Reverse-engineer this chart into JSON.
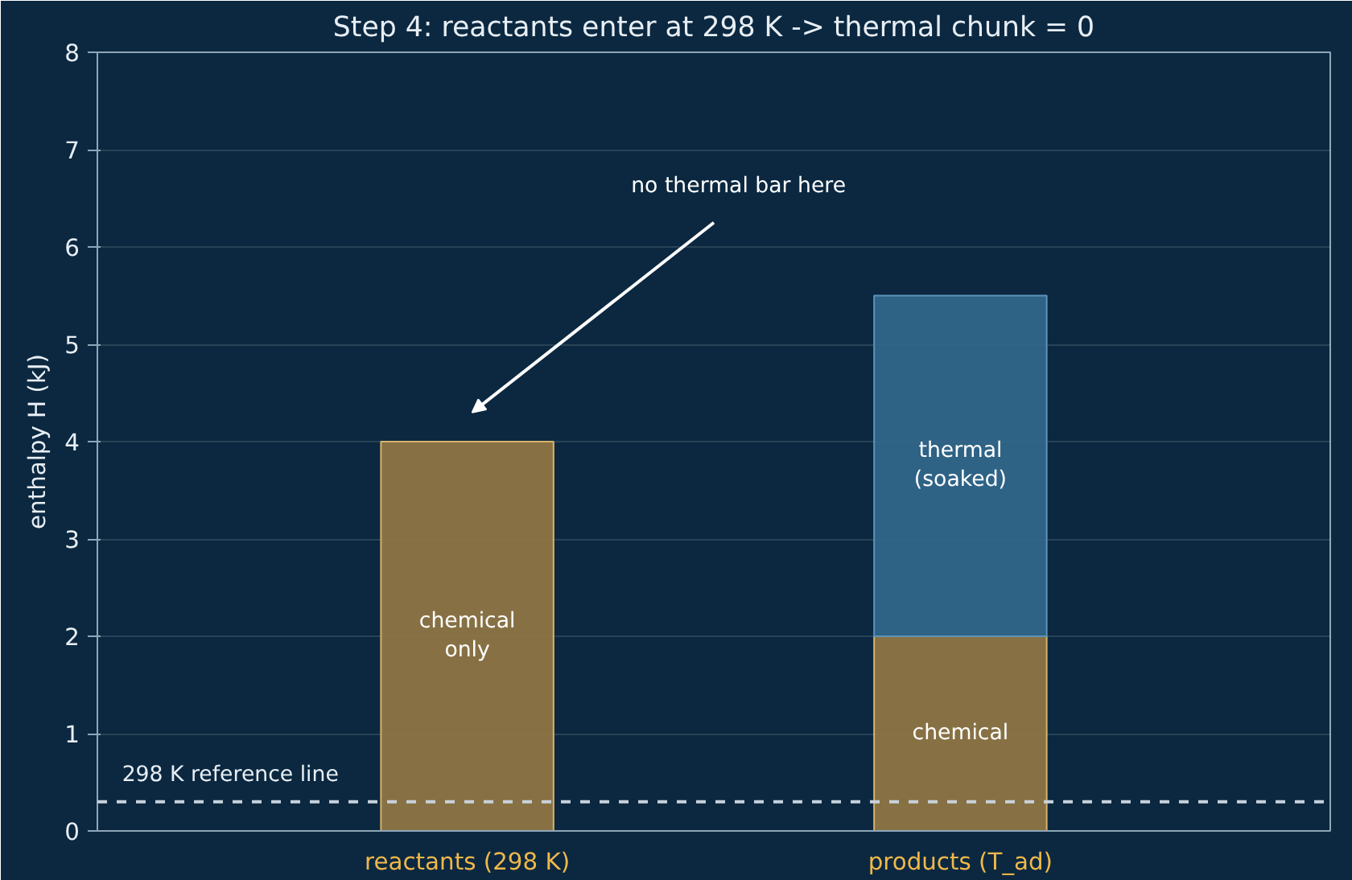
{
  "chart_data": {
    "type": "bar",
    "title": "Step 4: reactants enter at 298 K -> thermal chunk = 0",
    "ylabel": "enthalpy H (kJ)",
    "categories": [
      "reactants (298 K)",
      "products (T_ad)"
    ],
    "stacked": true,
    "series": [
      {
        "color": "#8e7545",
        "values": [
          4,
          2
        ],
        "value_labels": [
          "chemical\nonly",
          "chemical"
        ]
      },
      {
        "color": "#32668a",
        "values": [
          0,
          3.5
        ],
        "value_labels": [
          null,
          "thermal\n(soaked)"
        ]
      }
    ],
    "ylim": [
      0,
      8
    ],
    "yticks": [
      0,
      1,
      2,
      3,
      4,
      5,
      6,
      7,
      8
    ],
    "grid": "y",
    "ref_lines": [
      {
        "axis": "y",
        "value": 0.3,
        "label": "298 K reference line",
        "color": "#c8d2dc",
        "line_style": "dashed"
      }
    ],
    "annotations": [
      "no thermal bar here"
    ]
  }
}
